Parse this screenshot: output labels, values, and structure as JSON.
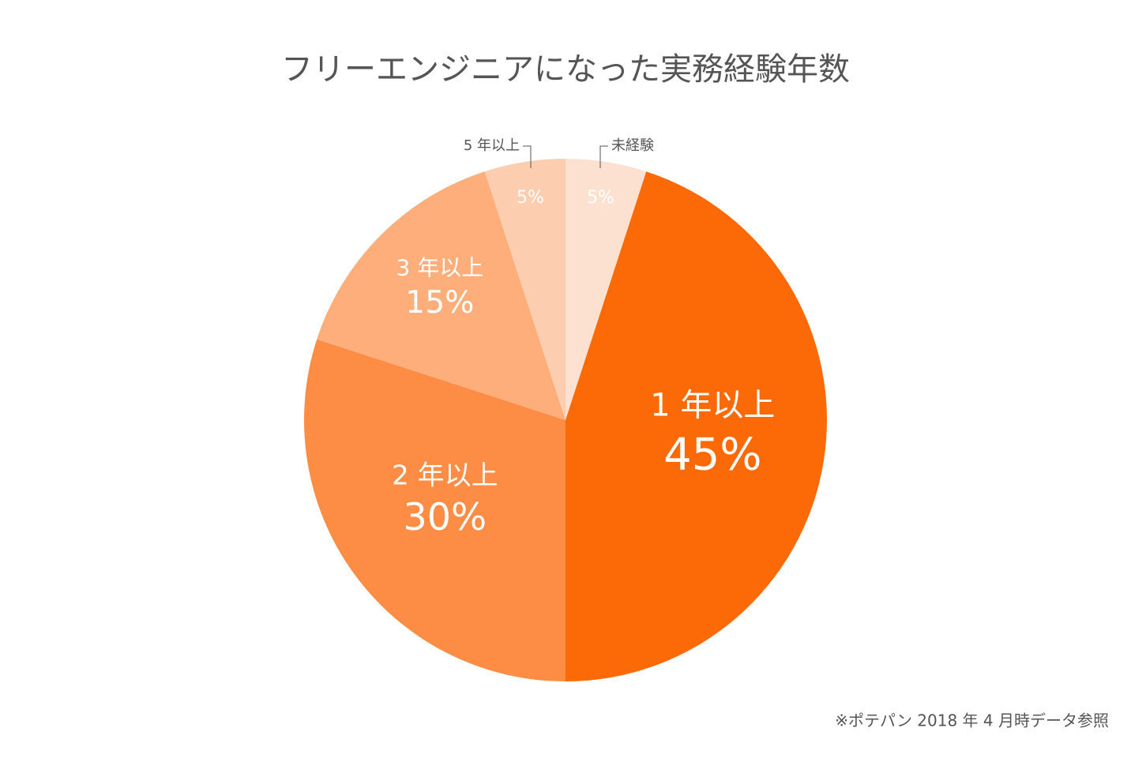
{
  "chart_data": {
    "type": "pie",
    "title": "フリーエンジニアになった実務経験年数",
    "categories": [
      "未経験",
      "1 年以上",
      "2 年以上",
      "3 年以上",
      "5 年以上"
    ],
    "values": [
      5,
      45,
      30,
      15,
      5
    ],
    "value_labels": [
      "5%",
      "45%",
      "30%",
      "15%",
      "5%"
    ],
    "colors": [
      "#fde1d0",
      "#fc6a08",
      "#fd8c44",
      "#fdae7a",
      "#fdcdb0"
    ],
    "note": "※ポテパン 2018 年 4 月時データ参照"
  }
}
